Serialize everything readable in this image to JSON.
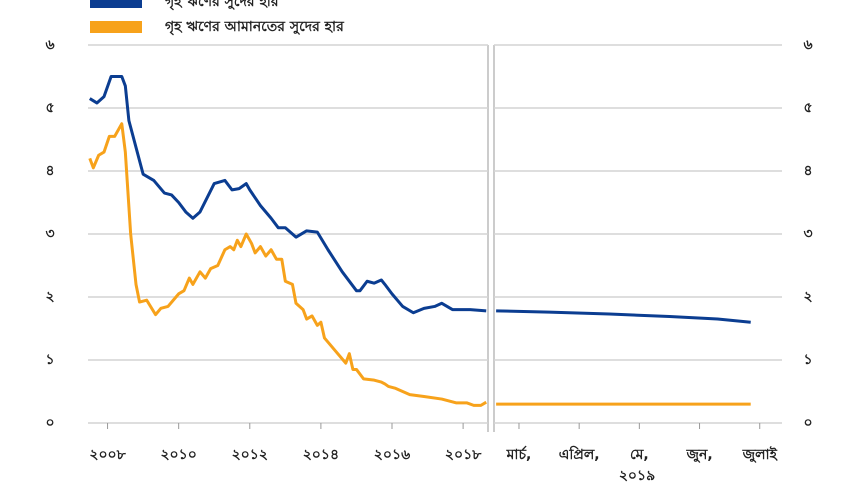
{
  "chart_data": [
    {
      "type": "line",
      "grid": true,
      "xlim": [
        2007.45,
        2018.7
      ],
      "xticks": [
        {
          "value": 2008,
          "label": "২০০৮"
        },
        {
          "value": 2010,
          "label": "২০১০"
        },
        {
          "value": 2012,
          "label": "২০১২"
        },
        {
          "value": 2014,
          "label": "২০১৪"
        },
        {
          "value": 2016,
          "label": "২০১৬"
        },
        {
          "value": 2018,
          "label": "২০১৮"
        }
      ],
      "ylim": [
        0,
        6
      ],
      "yticks": [
        {
          "value": 0,
          "label": "০"
        },
        {
          "value": 1,
          "label": "১"
        },
        {
          "value": 2,
          "label": "২"
        },
        {
          "value": 3,
          "label": "৩"
        },
        {
          "value": 4,
          "label": "৪"
        },
        {
          "value": 5,
          "label": "৫"
        },
        {
          "value": 6,
          "label": "৬"
        }
      ],
      "series": [
        {
          "name": "গৃহ ঋণের সুদের হার",
          "color": "#0b3d91",
          "x": [
            2007.5,
            2007.7,
            2007.9,
            2008.1,
            2008.4,
            2008.5,
            2008.6,
            2009.0,
            2009.3,
            2009.6,
            2009.8,
            2010.0,
            2010.2,
            2010.4,
            2010.6,
            2011.0,
            2011.3,
            2011.5,
            2011.7,
            2011.9,
            2012.0,
            2012.3,
            2012.6,
            2012.8,
            2013.0,
            2013.3,
            2013.6,
            2013.9,
            2014.2,
            2014.6,
            2015.0,
            2015.1,
            2015.3,
            2015.5,
            2015.7,
            2015.8,
            2016.0,
            2016.3,
            2016.6,
            2016.9,
            2017.2,
            2017.4,
            2017.7,
            2018.2,
            2018.65
          ],
          "values": [
            5.15,
            5.08,
            5.18,
            5.5,
            5.5,
            5.35,
            4.8,
            3.95,
            3.85,
            3.65,
            3.62,
            3.5,
            3.35,
            3.25,
            3.35,
            3.8,
            3.85,
            3.7,
            3.72,
            3.8,
            3.7,
            3.45,
            3.25,
            3.1,
            3.1,
            2.95,
            3.05,
            3.03,
            2.75,
            2.4,
            2.1,
            2.1,
            2.25,
            2.22,
            2.27,
            2.2,
            2.05,
            1.85,
            1.75,
            1.82,
            1.85,
            1.9,
            1.8,
            1.8,
            1.78
          ]
        },
        {
          "name": "গৃহ ঋণের আমানতের সুদের হার",
          "color": "#f7a21b",
          "x": [
            2007.5,
            2007.6,
            2007.75,
            2007.9,
            2008.05,
            2008.2,
            2008.4,
            2008.5,
            2008.65,
            2008.8,
            2008.9,
            2009.1,
            2009.35,
            2009.5,
            2009.7,
            2009.85,
            2010.0,
            2010.15,
            2010.3,
            2010.4,
            2010.6,
            2010.75,
            2010.9,
            2011.1,
            2011.3,
            2011.45,
            2011.55,
            2011.65,
            2011.75,
            2011.9,
            2012.05,
            2012.15,
            2012.3,
            2012.45,
            2012.6,
            2012.75,
            2012.9,
            2013.0,
            2013.2,
            2013.3,
            2013.5,
            2013.6,
            2013.75,
            2013.9,
            2014.0,
            2014.1,
            2014.4,
            2014.7,
            2014.8,
            2014.9,
            2015.0,
            2015.2,
            2015.5,
            2015.7,
            2015.8,
            2015.9,
            2016.1,
            2016.3,
            2016.5,
            2016.9,
            2017.4,
            2017.8,
            2018.1,
            2018.3,
            2018.5,
            2018.65
          ],
          "values": [
            4.2,
            4.05,
            4.25,
            4.3,
            4.55,
            4.55,
            4.75,
            4.3,
            3.0,
            2.2,
            1.92,
            1.95,
            1.72,
            1.82,
            1.85,
            1.95,
            2.05,
            2.1,
            2.3,
            2.2,
            2.4,
            2.3,
            2.45,
            2.5,
            2.75,
            2.8,
            2.75,
            2.9,
            2.8,
            3.0,
            2.85,
            2.7,
            2.8,
            2.65,
            2.75,
            2.6,
            2.6,
            2.25,
            2.2,
            1.9,
            1.8,
            1.65,
            1.7,
            1.55,
            1.6,
            1.35,
            1.15,
            0.95,
            1.1,
            0.85,
            0.85,
            0.7,
            0.68,
            0.65,
            0.62,
            0.58,
            0.55,
            0.5,
            0.45,
            0.42,
            0.38,
            0.32,
            0.32,
            0.28,
            0.28,
            0.33
          ]
        }
      ]
    },
    {
      "type": "line",
      "grid": true,
      "xlabel": "২০১৯",
      "xlim": [
        2.585,
        7.37
      ],
      "xticks": [
        {
          "value": 3,
          "label": "মার্চ,"
        },
        {
          "value": 4,
          "label": "এপ্রিল,"
        },
        {
          "value": 5,
          "label": "মে,"
        },
        {
          "value": 6,
          "label": "জুন,"
        },
        {
          "value": 7,
          "label": "জুলাই"
        }
      ],
      "ylim": [
        0,
        6
      ],
      "yticks": [
        {
          "value": 0,
          "label": "০"
        },
        {
          "value": 1,
          "label": "১"
        },
        {
          "value": 2,
          "label": "২"
        },
        {
          "value": 3,
          "label": "৩"
        },
        {
          "value": 4,
          "label": "৪"
        },
        {
          "value": 5,
          "label": "৫"
        },
        {
          "value": 6,
          "label": "৬"
        }
      ],
      "series": [
        {
          "color": "#0b3d91",
          "x": [
            2.62,
            3.5,
            4.5,
            5.5,
            6.3,
            6.85
          ],
          "values": [
            1.78,
            1.76,
            1.73,
            1.69,
            1.65,
            1.6
          ]
        },
        {
          "color": "#f7a21b",
          "x": [
            2.62,
            6.85
          ],
          "values": [
            0.3,
            0.3
          ]
        }
      ]
    }
  ]
}
